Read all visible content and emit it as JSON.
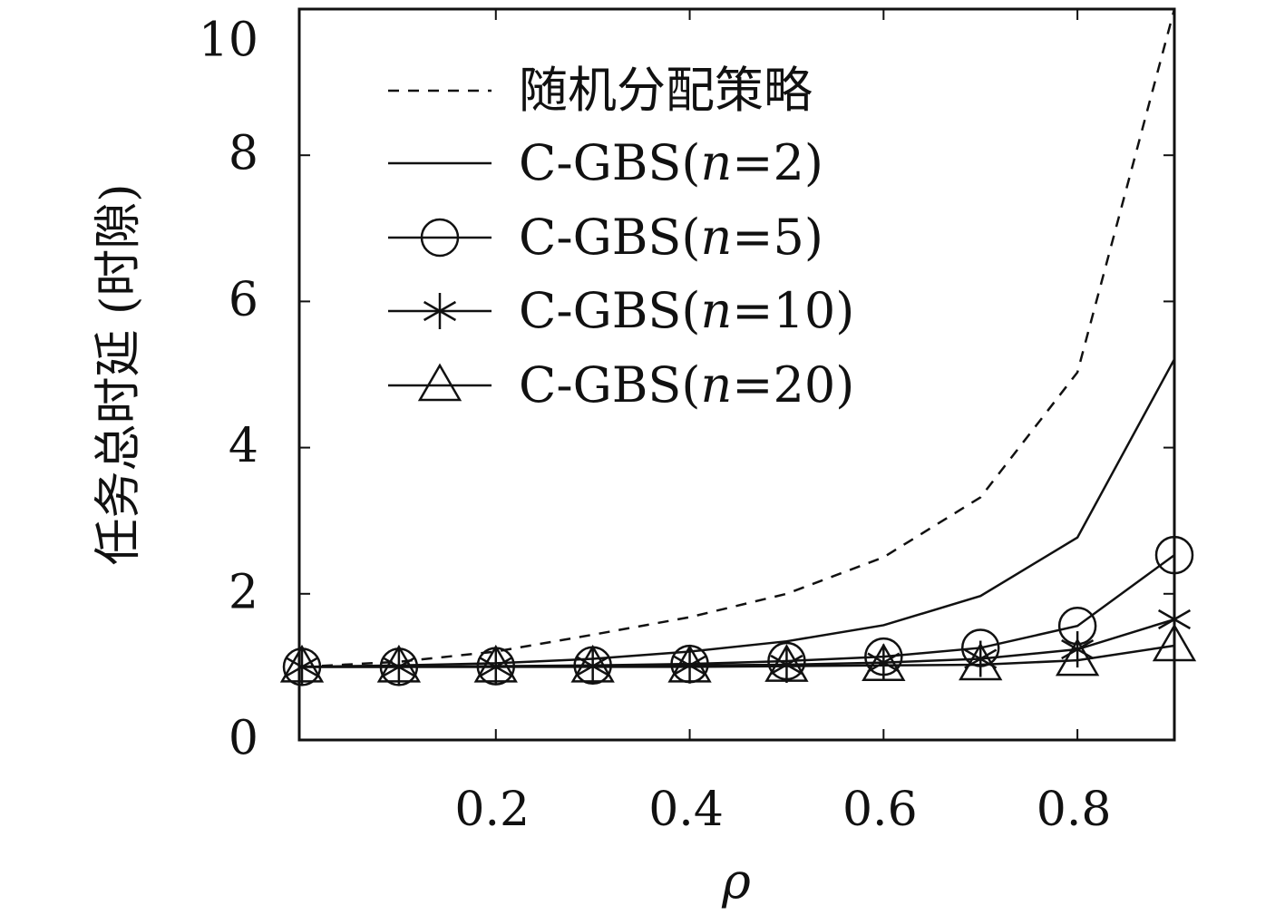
{
  "chart_data": {
    "type": "line",
    "title": "",
    "xlabel": "ρ",
    "ylabel": "任务总时延 (时隙)",
    "xlim": [
      0,
      0.9
    ],
    "ylim": [
      0,
      10
    ],
    "x_ticks": [
      0.2,
      0.4,
      0.6,
      0.8
    ],
    "x_tick_labels": [
      "0.2",
      "0.4",
      "0.6",
      "0.8"
    ],
    "y_ticks": [
      0,
      2,
      4,
      6,
      8,
      10
    ],
    "y_tick_labels": [
      "0",
      "2",
      "4",
      "6",
      "8",
      "10"
    ],
    "grid": false,
    "legend_position": "top-left",
    "x": [
      0,
      0.1,
      0.2,
      0.3,
      0.4,
      0.5,
      0.6,
      0.7,
      0.8,
      0.9
    ],
    "series": [
      {
        "name": "随机分配策略",
        "style": "dashed",
        "marker": "none",
        "values": [
          1.0,
          1.07,
          1.21,
          1.44,
          1.68,
          2.0,
          2.5,
          3.32,
          5.03,
          10.0
        ]
      },
      {
        "name": "C-GBS(n=2)",
        "name_prefix": "C-GBS(",
        "name_var": "n",
        "name_suffix": "=2)",
        "style": "solid",
        "marker": "none",
        "values": [
          1.0,
          1.02,
          1.05,
          1.11,
          1.21,
          1.35,
          1.57,
          1.97,
          2.77,
          5.21
        ]
      },
      {
        "name": "C-GBS(n=5)",
        "name_prefix": "C-GBS(",
        "name_var": "n",
        "name_suffix": "=5)",
        "style": "solid",
        "marker": "circle",
        "values": [
          1.0,
          1.0,
          1.01,
          1.02,
          1.04,
          1.08,
          1.14,
          1.26,
          1.56,
          2.53
        ]
      },
      {
        "name": "C-GBS(n=10)",
        "name_prefix": "C-GBS(",
        "name_var": "n",
        "name_suffix": "=10)",
        "style": "solid",
        "marker": "asterisk",
        "values": [
          1.0,
          1.0,
          1.0,
          1.01,
          1.02,
          1.03,
          1.06,
          1.11,
          1.24,
          1.65
        ]
      },
      {
        "name": "C-GBS(n=20)",
        "name_prefix": "C-GBS(",
        "name_var": "n",
        "name_suffix": "=20)",
        "style": "solid",
        "marker": "triangle",
        "values": [
          1.0,
          1.0,
          1.0,
          1.0,
          1.0,
          1.01,
          1.02,
          1.03,
          1.09,
          1.29
        ]
      }
    ]
  }
}
